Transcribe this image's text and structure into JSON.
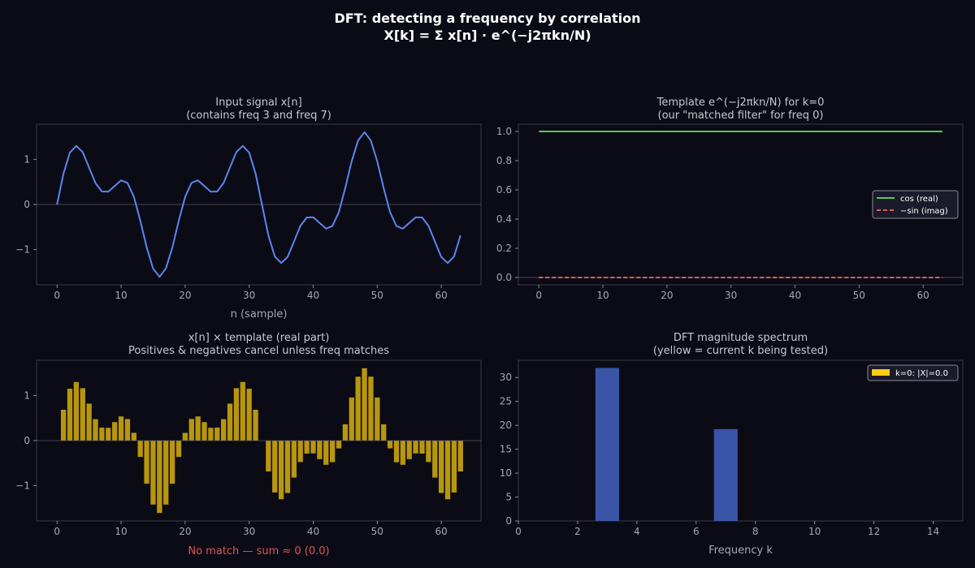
{
  "figure": {
    "title_line1": "DFT: detecting a frequency by correlation",
    "title_line2": "X[k] = Σ x[n] · e^(−j2πkn/N)"
  },
  "colors": {
    "background": "#0b0b16",
    "panel": "#0b0b16",
    "spine": "#3a3a4a",
    "text": "#c8c8d0",
    "title": "#ffffff",
    "signal": "#5b86f0",
    "cos": "#55cc55",
    "sin": "#e05a5a",
    "product": "#b8960e",
    "spectrum": "#3a55a8",
    "highlight": "#ffcc11",
    "note": "#e05555",
    "zeroline": "#5a5a6a"
  },
  "chart_data": [
    {
      "id": "input",
      "type": "line",
      "title": "Input signal x[n]",
      "subtitle": "(contains freq 3 and freq 7)",
      "xlabel": "n (sample)",
      "ylabel": "",
      "xlim": [
        -3.2,
        66.2
      ],
      "ylim": [
        -1.78,
        1.78
      ],
      "xticks": [
        0,
        10,
        20,
        30,
        40,
        50,
        60
      ],
      "yticks": [
        -1,
        0,
        1
      ],
      "ytick_labels": [
        "−1",
        "0",
        "1"
      ],
      "grid": false,
      "x": [
        0,
        1,
        2,
        3,
        4,
        5,
        6,
        7,
        8,
        9,
        10,
        11,
        12,
        13,
        14,
        15,
        16,
        17,
        18,
        19,
        20,
        21,
        22,
        23,
        24,
        25,
        26,
        27,
        28,
        29,
        30,
        31,
        32,
        33,
        34,
        35,
        36,
        37,
        38,
        39,
        40,
        41,
        42,
        43,
        44,
        45,
        46,
        47,
        48,
        49,
        50,
        51,
        52,
        53,
        54,
        55,
        56,
        57,
        58,
        59,
        60,
        61,
        62,
        63
      ],
      "values": [
        0,
        0.684,
        1.149,
        1.299,
        1.162,
        0.819,
        0.475,
        0.288,
        0.283,
        0.41,
        0.536,
        0.478,
        0.173,
        -0.362,
        -0.955,
        -1.416,
        -1.604,
        -1.417,
        -0.956,
        -0.362,
        0.171,
        0.48,
        0.536,
        0.41,
        0.283,
        0.288,
        0.475,
        0.819,
        1.162,
        1.299,
        1.149,
        0.684,
        0,
        -0.684,
        -1.149,
        -1.299,
        -1.162,
        -0.819,
        -0.475,
        -0.288,
        -0.283,
        -0.41,
        -0.536,
        -0.478,
        -0.173,
        0.362,
        0.955,
        1.416,
        1.604,
        1.417,
        0.956,
        0.362,
        -0.171,
        -0.48,
        -0.536,
        -0.41,
        -0.283,
        -0.288,
        -0.475,
        -0.819,
        -1.162,
        -1.299,
        -1.149,
        -0.684
      ]
    },
    {
      "id": "template",
      "type": "line",
      "title": "Template e^(−j2πkn/N) for k=0",
      "subtitle": "(our \"matched filter\" for freq 0)",
      "xlabel": "",
      "ylabel": "",
      "xlim": [
        -3.2,
        66.2
      ],
      "ylim": [
        -0.05,
        1.05
      ],
      "xticks": [
        0,
        10,
        20,
        30,
        40,
        50,
        60
      ],
      "yticks": [
        0,
        0.2,
        0.4,
        0.6,
        0.8,
        1.0
      ],
      "ytick_labels": [
        "0.0",
        "0.2",
        "0.4",
        "0.6",
        "0.8",
        "1.0"
      ],
      "grid": false,
      "legend_position": "center-right",
      "series": [
        {
          "name": "cos (real)",
          "style": "solid",
          "x_start": 0,
          "x_end": 63,
          "value": 1.0
        },
        {
          "name": "−sin (imag)",
          "style": "dashed",
          "x_start": 0,
          "x_end": 63,
          "value": 0.0
        }
      ]
    },
    {
      "id": "product",
      "type": "bar",
      "title": "x[n] × template (real part)",
      "subtitle": "Positives & negatives cancel unless freq matches",
      "xlabel": "",
      "note": "No match — sum ≈ 0 (0.0)",
      "xlim": [
        -3.2,
        66.2
      ],
      "ylim": [
        -1.78,
        1.78
      ],
      "xticks": [
        0,
        10,
        20,
        30,
        40,
        50,
        60
      ],
      "yticks": [
        -1,
        0,
        1
      ],
      "ytick_labels": [
        "−1",
        "0",
        "1"
      ],
      "grid": false,
      "x": [
        0,
        1,
        2,
        3,
        4,
        5,
        6,
        7,
        8,
        9,
        10,
        11,
        12,
        13,
        14,
        15,
        16,
        17,
        18,
        19,
        20,
        21,
        22,
        23,
        24,
        25,
        26,
        27,
        28,
        29,
        30,
        31,
        32,
        33,
        34,
        35,
        36,
        37,
        38,
        39,
        40,
        41,
        42,
        43,
        44,
        45,
        46,
        47,
        48,
        49,
        50,
        51,
        52,
        53,
        54,
        55,
        56,
        57,
        58,
        59,
        60,
        61,
        62,
        63
      ],
      "values": [
        0,
        0.684,
        1.149,
        1.299,
        1.162,
        0.819,
        0.475,
        0.288,
        0.283,
        0.41,
        0.536,
        0.478,
        0.173,
        -0.362,
        -0.955,
        -1.416,
        -1.604,
        -1.417,
        -0.956,
        -0.362,
        0.171,
        0.48,
        0.536,
        0.41,
        0.283,
        0.288,
        0.475,
        0.819,
        1.162,
        1.299,
        1.149,
        0.684,
        0,
        -0.684,
        -1.149,
        -1.299,
        -1.162,
        -0.819,
        -0.475,
        -0.288,
        -0.283,
        -0.41,
        -0.536,
        -0.478,
        -0.173,
        0.362,
        0.955,
        1.416,
        1.604,
        1.417,
        0.956,
        0.362,
        -0.171,
        -0.48,
        -0.536,
        -0.41,
        -0.283,
        -0.288,
        -0.475,
        -0.819,
        -1.162,
        -1.299,
        -1.149,
        -0.684
      ]
    },
    {
      "id": "spectrum",
      "type": "bar",
      "title": "DFT magnitude spectrum",
      "subtitle": "(yellow = current k being tested)",
      "xlabel": "Frequency k",
      "xlim": [
        0,
        15
      ],
      "ylim": [
        0,
        33.6
      ],
      "xticks": [
        0,
        2,
        4,
        6,
        8,
        10,
        12,
        14
      ],
      "yticks": [
        0,
        5,
        10,
        15,
        20,
        25,
        30
      ],
      "grid": false,
      "legend_position": "top-right",
      "legend_label": "k=0: |X|=0.0",
      "highlight_k": 0,
      "categories": [
        0,
        1,
        2,
        3,
        4,
        5,
        6,
        7,
        8,
        9,
        10,
        11,
        12,
        13,
        14,
        15
      ],
      "values": [
        0,
        0,
        0,
        32,
        0,
        0,
        0,
        19.2,
        0,
        0,
        0,
        0,
        0,
        0,
        0,
        0
      ]
    }
  ]
}
